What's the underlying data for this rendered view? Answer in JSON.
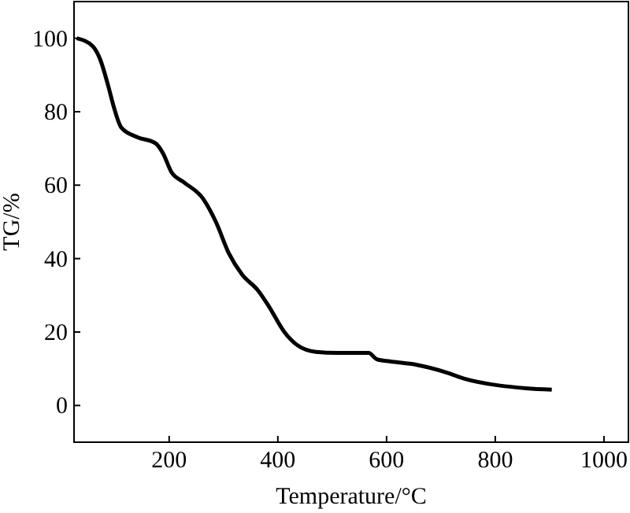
{
  "chart_data": {
    "type": "line",
    "xlabel": "Temperature/°C",
    "ylabel": "TG/%",
    "xlim": [
      25,
      1045
    ],
    "ylim": [
      -10,
      110
    ],
    "xticks": [
      200,
      400,
      600,
      800,
      1000
    ],
    "yticks": [
      0,
      20,
      40,
      60,
      80,
      100
    ],
    "grid": false,
    "marker": "none",
    "line_style": "solid",
    "series": [
      {
        "color": "#000000",
        "x": [
          30,
          59,
          73,
          88,
          98,
          112,
          141,
          175,
          189,
          204,
          228,
          262,
          286,
          310,
          334,
          363,
          383,
          412,
          436,
          470,
          509,
          567,
          582,
          606,
          654,
          712,
          741,
          809,
          857,
          904
        ],
        "values": [
          100,
          97.9,
          94.3,
          87,
          81.4,
          75.7,
          73.1,
          71.4,
          68.6,
          63.6,
          60.7,
          56.4,
          50,
          41.4,
          35.7,
          31.4,
          27.1,
          20,
          16.4,
          14.6,
          14.3,
          14.3,
          12.6,
          12,
          11.1,
          8.9,
          7.4,
          5.4,
          4.7,
          4.3
        ]
      }
    ]
  }
}
